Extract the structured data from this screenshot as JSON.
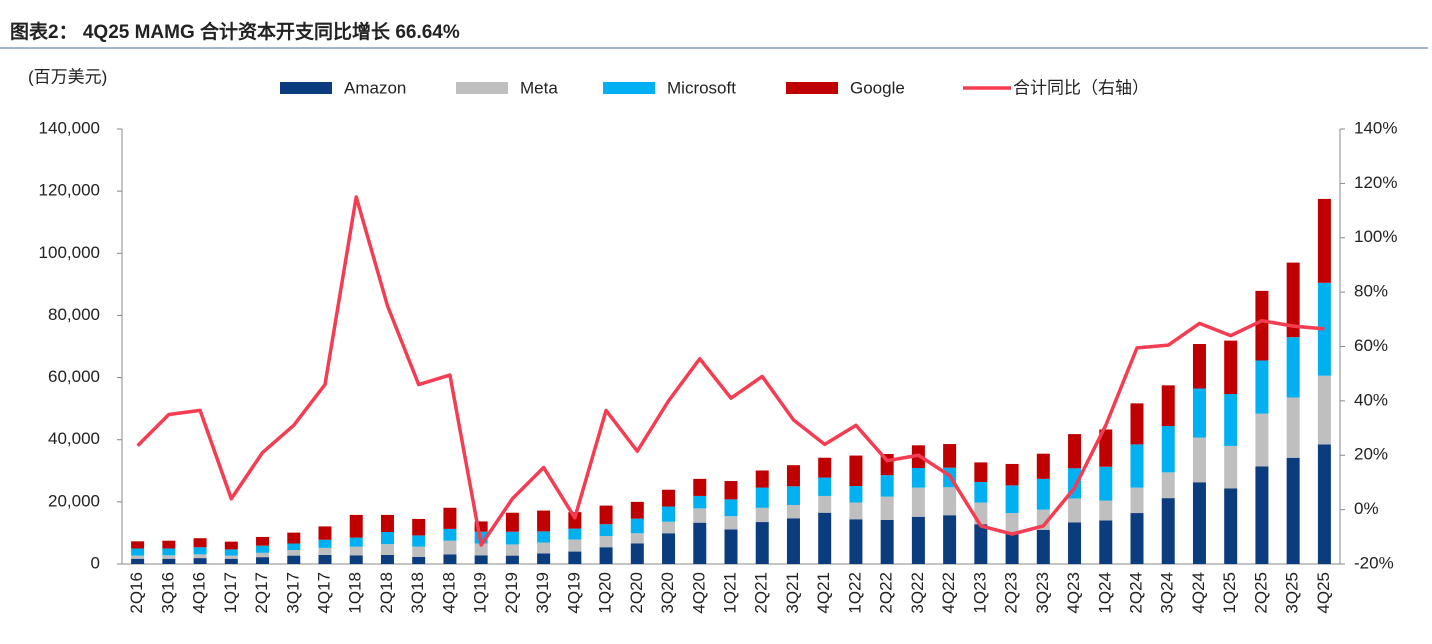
{
  "chart_data": {
    "type": "bar",
    "title": "图表2： 4Q25 MAMG 合计资本开支同比增长 66.64%",
    "y_label": "(百万美元)",
    "categories": [
      "2Q16",
      "3Q16",
      "4Q16",
      "1Q17",
      "2Q17",
      "3Q17",
      "4Q17",
      "1Q18",
      "2Q18",
      "3Q18",
      "4Q18",
      "1Q19",
      "2Q19",
      "3Q19",
      "4Q19",
      "1Q20",
      "2Q20",
      "3Q20",
      "4Q20",
      "1Q21",
      "2Q21",
      "3Q21",
      "4Q21",
      "1Q22",
      "2Q22",
      "3Q22",
      "4Q22",
      "1Q23",
      "2Q23",
      "3Q23",
      "4Q23",
      "1Q24",
      "2Q24",
      "3Q24",
      "4Q24",
      "1Q25",
      "2Q25",
      "3Q25",
      "4Q25"
    ],
    "stacked": true,
    "series": [
      {
        "name": "Amazon",
        "color": "#0b3c7d",
        "values": [
          1700,
          1700,
          1900,
          1700,
          2200,
          2700,
          2900,
          2800,
          2900,
          2300,
          3100,
          2800,
          2700,
          3400,
          4000,
          5400,
          6600,
          9900,
          13300,
          11100,
          13500,
          14700,
          16500,
          14400,
          14200,
          15200,
          15700,
          12800,
          10000,
          11000,
          13400,
          14000,
          16400,
          21200,
          26300,
          24300,
          31400,
          34200,
          38500
        ]
      },
      {
        "name": "Meta",
        "color": "#bfbfbf",
        "values": [
          1000,
          1100,
          1200,
          1000,
          1400,
          1800,
          2300,
          2800,
          3500,
          3300,
          4400,
          3800,
          3600,
          3500,
          3900,
          3600,
          3300,
          3700,
          4600,
          4300,
          4600,
          4300,
          5400,
          5400,
          7500,
          9400,
          9000,
          7000,
          6400,
          6500,
          7700,
          6400,
          8200,
          8300,
          14400,
          13700,
          17000,
          19400,
          22100
        ]
      },
      {
        "name": "Microsoft",
        "color": "#00b0f0",
        "values": [
          2300,
          2200,
          2300,
          2000,
          2300,
          2100,
          2600,
          2900,
          3900,
          3600,
          3800,
          3800,
          4100,
          3600,
          3500,
          3800,
          4700,
          4900,
          4000,
          5400,
          6500,
          6000,
          5900,
          5300,
          6900,
          6300,
          6300,
          6600,
          8900,
          9900,
          9700,
          10900,
          13900,
          14900,
          15800,
          16700,
          17100,
          19400,
          29900
        ]
      },
      {
        "name": "Google",
        "color": "#c00000",
        "values": [
          2300,
          2500,
          2900,
          2500,
          2800,
          3500,
          4300,
          7300,
          5500,
          5300,
          6800,
          3300,
          6100,
          6700,
          5300,
          6000,
          5400,
          5400,
          5500,
          5900,
          5500,
          6800,
          6400,
          9800,
          6800,
          7300,
          7600,
          6300,
          6900,
          8100,
          11000,
          12000,
          13200,
          13100,
          14300,
          17200,
          22400,
          24000,
          27000
        ]
      },
      {
        "name": "合计同比（右轴）",
        "type": "line",
        "axis": "y2",
        "color": "#f43c52",
        "values": [
          23.5,
          35,
          36.5,
          4,
          21,
          31,
          46,
          115,
          75,
          46,
          49.5,
          -13,
          4,
          15.5,
          -3,
          36.5,
          21.5,
          40,
          55.5,
          41,
          49,
          33,
          24,
          31,
          18,
          20,
          12.5,
          -6,
          -9,
          -6,
          8,
          31,
          59.5,
          60.5,
          68.5,
          64,
          69.5,
          67.5,
          66.5
        ]
      }
    ],
    "ylim": [
      0,
      140000
    ],
    "yticks": [
      0,
      {
        "value": 20000,
        "label": "20,000"
      },
      {
        "value": 40000,
        "label": "40,000"
      },
      {
        "value": 60000,
        "label": "60,000"
      },
      {
        "value": 80000,
        "label": "80,000"
      },
      {
        "value": 100000,
        "label": "100,000"
      },
      {
        "value": 120000,
        "label": "120,000"
      },
      {
        "value": 140000,
        "label": "140,000"
      }
    ],
    "y2lim": [
      -20,
      140
    ],
    "y2ticks": [
      {
        "value": -20,
        "label": "-20%"
      },
      {
        "value": 0,
        "label": "0%"
      },
      {
        "value": 20,
        "label": "20%"
      },
      {
        "value": 40,
        "label": "40%"
      },
      {
        "value": 60,
        "label": "60%"
      },
      {
        "value": 80,
        "label": "80%"
      },
      {
        "value": 100,
        "label": "100%"
      },
      {
        "value": 120,
        "label": "120%"
      },
      {
        "value": 140,
        "label": "140%"
      }
    ],
    "grid": false,
    "legend": "top"
  }
}
